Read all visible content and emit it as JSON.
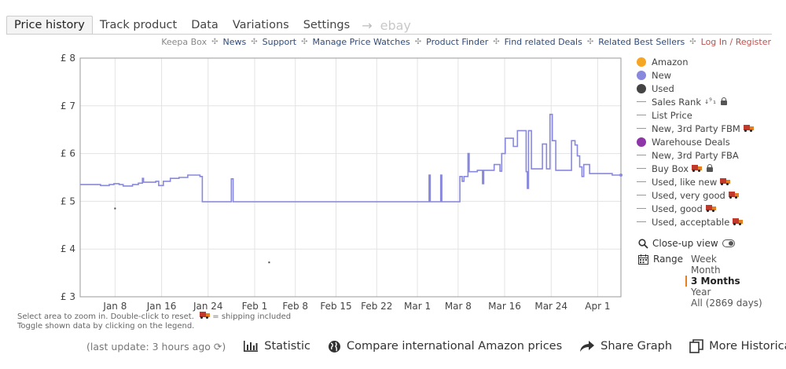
{
  "tabs": [
    "Price history",
    "Track product",
    "Data",
    "Variations",
    "Settings"
  ],
  "tab_arrow": "→",
  "tab_ebay": "ebay",
  "links": [
    "Keepa Box",
    "News",
    "Support",
    "Manage Price Watches",
    "Product Finder",
    "Find related Deals",
    "Related Best Sellers",
    "Log In / Register"
  ],
  "legend": {
    "amazon": "Amazon",
    "new": "New",
    "used": "Used",
    "sales_rank": "Sales Rank",
    "list_price": "List Price",
    "new_3p_fbm": "New, 3rd Party FBM",
    "warehouse": "Warehouse Deals",
    "new_3p_fba": "New, 3rd Party FBA",
    "buy_box": "Buy Box",
    "used_like_new": "Used, like new",
    "used_very_good": "Used, very good",
    "used_good": "Used, good",
    "used_acceptable": "Used, acceptable"
  },
  "colors": {
    "amazon": "#f5a623",
    "new": "#8888dd",
    "used": "#444444",
    "warehouse": "#8e35a8",
    "accent": "#e67e22"
  },
  "closeup_label": "Close-up view",
  "range_label": "Range",
  "range_options": [
    "Week",
    "Month",
    "3 Months",
    "Year",
    "All (2869 days)"
  ],
  "range_selected": "3 Months",
  "hint_line1": "Select area to zoom in. Double-click to reset.",
  "hint_shipping": "= shipping included",
  "hint_line2": "Toggle shown data by clicking on the legend.",
  "last_update": "(last update: 3 hours ago",
  "bottom": {
    "statistic": "Statistic",
    "compare": "Compare international Amazon prices",
    "share": "Share Graph",
    "historical": "More Historical Data"
  },
  "chart_data": {
    "type": "line",
    "currency": "£",
    "ylim": [
      3,
      8
    ],
    "yticks": [
      "£ 3",
      "£ 4",
      "£ 5",
      "£ 6",
      "£ 7",
      "£ 8"
    ],
    "xlim_days": [
      0,
      93
    ],
    "xticks": [
      {
        "label": "Jan 8",
        "day": 6
      },
      {
        "label": "Jan 16",
        "day": 14
      },
      {
        "label": "Jan 24",
        "day": 22
      },
      {
        "label": "Feb 1",
        "day": 30
      },
      {
        "label": "Feb 8",
        "day": 37
      },
      {
        "label": "Feb 15",
        "day": 44
      },
      {
        "label": "Feb 22",
        "day": 51
      },
      {
        "label": "Mar 1",
        "day": 58
      },
      {
        "label": "Mar 8",
        "day": 65
      },
      {
        "label": "Mar 16",
        "day": 73
      },
      {
        "label": "Mar 24",
        "day": 81
      },
      {
        "label": "Apr 1",
        "day": 89
      }
    ],
    "series": [
      {
        "name": "New",
        "values": [
          [
            0,
            5.35
          ],
          [
            3.5,
            5.35
          ],
          [
            3.5,
            5.33
          ],
          [
            5,
            5.33
          ],
          [
            5,
            5.35
          ],
          [
            5.8,
            5.35
          ],
          [
            5.8,
            5.37
          ],
          [
            6.7,
            5.37
          ],
          [
            6.7,
            5.35
          ],
          [
            7.4,
            5.35
          ],
          [
            7.4,
            5.32
          ],
          [
            9,
            5.32
          ],
          [
            9,
            5.35
          ],
          [
            10,
            5.35
          ],
          [
            10,
            5.38
          ],
          [
            10.7,
            5.38
          ],
          [
            10.7,
            5.48
          ],
          [
            10.9,
            5.48
          ],
          [
            10.9,
            5.4
          ],
          [
            13,
            5.4
          ],
          [
            13,
            5.42
          ],
          [
            13.5,
            5.42
          ],
          [
            13.5,
            5.33
          ],
          [
            14.3,
            5.33
          ],
          [
            14.3,
            5.42
          ],
          [
            15.5,
            5.42
          ],
          [
            15.5,
            5.48
          ],
          [
            17,
            5.48
          ],
          [
            17,
            5.5
          ],
          [
            18.5,
            5.5
          ],
          [
            18.5,
            5.55
          ],
          [
            20.6,
            5.55
          ],
          [
            20.6,
            5.52
          ],
          [
            21,
            5.52
          ],
          [
            21,
            4.99
          ],
          [
            26,
            4.99
          ],
          [
            26,
            5.47
          ],
          [
            26.3,
            5.47
          ],
          [
            26.3,
            4.99
          ],
          [
            60,
            4.99
          ],
          [
            60,
            5.55
          ],
          [
            60.2,
            5.55
          ],
          [
            60.2,
            4.99
          ],
          [
            62,
            4.99
          ],
          [
            62,
            5.55
          ],
          [
            62.2,
            5.55
          ],
          [
            62.2,
            4.99
          ],
          [
            65.3,
            4.99
          ],
          [
            65.3,
            5.52
          ],
          [
            65.7,
            5.52
          ],
          [
            65.7,
            5.42
          ],
          [
            66,
            5.42
          ],
          [
            66,
            5.52
          ],
          [
            66.7,
            5.52
          ],
          [
            66.7,
            6.0
          ],
          [
            66.9,
            6.0
          ],
          [
            66.9,
            5.62
          ],
          [
            68.3,
            5.62
          ],
          [
            68.3,
            5.65
          ],
          [
            69.2,
            5.65
          ],
          [
            69.2,
            5.37
          ],
          [
            69.4,
            5.37
          ],
          [
            69.4,
            5.65
          ],
          [
            71.2,
            5.65
          ],
          [
            71.2,
            5.77
          ],
          [
            72.2,
            5.77
          ],
          [
            72.2,
            5.63
          ],
          [
            72.5,
            5.63
          ],
          [
            72.5,
            6.0
          ],
          [
            73.1,
            6.0
          ],
          [
            73.1,
            6.32
          ],
          [
            74.5,
            6.32
          ],
          [
            74.5,
            6.15
          ],
          [
            75.2,
            6.15
          ],
          [
            75.2,
            6.48
          ],
          [
            76.7,
            6.48
          ],
          [
            76.7,
            5.62
          ],
          [
            76.9,
            5.62
          ],
          [
            76.9,
            5.27
          ],
          [
            77.1,
            5.27
          ],
          [
            77.1,
            6.48
          ],
          [
            77.6,
            6.48
          ],
          [
            77.6,
            5.68
          ],
          [
            79.5,
            5.68
          ],
          [
            79.5,
            6.2
          ],
          [
            80.2,
            6.2
          ],
          [
            80.2,
            5.68
          ],
          [
            80.8,
            5.68
          ],
          [
            80.8,
            6.82
          ],
          [
            81.2,
            6.82
          ],
          [
            81.2,
            6.27
          ],
          [
            81.8,
            6.27
          ],
          [
            81.8,
            5.65
          ],
          [
            84.5,
            5.65
          ],
          [
            84.5,
            6.27
          ],
          [
            85.1,
            6.27
          ],
          [
            85.1,
            6.18
          ],
          [
            85.5,
            6.18
          ],
          [
            85.5,
            5.95
          ],
          [
            85.9,
            5.95
          ],
          [
            85.9,
            5.72
          ],
          [
            86.3,
            5.72
          ],
          [
            86.3,
            5.52
          ],
          [
            86.6,
            5.52
          ],
          [
            86.6,
            5.77
          ],
          [
            87.6,
            5.77
          ],
          [
            87.6,
            5.58
          ],
          [
            91.5,
            5.58
          ],
          [
            91.5,
            5.55
          ],
          [
            93,
            5.55
          ]
        ]
      },
      {
        "name": "Used",
        "values": [
          [
            6.0,
            4.85
          ],
          [
            32.5,
            3.72
          ]
        ]
      }
    ]
  }
}
